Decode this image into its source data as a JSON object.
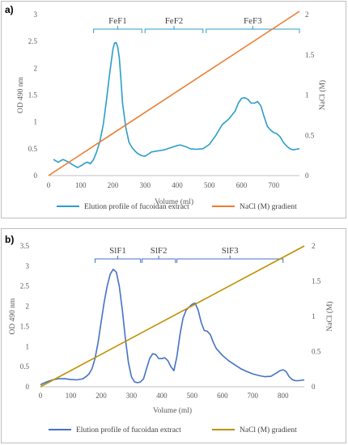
{
  "chart_data": [
    {
      "panel_label": "a)",
      "type": "line",
      "xlabel": "Volume (ml)",
      "ylabel_left": "OD 490 nm",
      "ylabel_right": "NaCl (M)",
      "xlim": [
        0,
        780
      ],
      "x_ticks": [
        "0",
        "100",
        "200",
        "300",
        "400",
        "500",
        "600",
        "700"
      ],
      "ylim_left": [
        0,
        3
      ],
      "y_ticks_left": [
        "0",
        "0.5",
        "1",
        "1.5",
        "2",
        "2.5",
        "3"
      ],
      "ylim_right": [
        0,
        2
      ],
      "y_ticks_right": [
        "0",
        "0.5",
        "1",
        "1.5",
        "2"
      ],
      "fractions": [
        {
          "label": "FeF1",
          "start": 140,
          "end": 290
        },
        {
          "label": "FeF2",
          "start": 300,
          "end": 480
        },
        {
          "label": "FeF3",
          "start": 490,
          "end": 780
        }
      ],
      "series": [
        {
          "name": "Elution profile of fucoidan extract",
          "axis": "left",
          "color": "#2b9ec8",
          "x": [
            15,
            30,
            45,
            60,
            75,
            90,
            100,
            110,
            120,
            130,
            140,
            150,
            160,
            170,
            180,
            190,
            200,
            205,
            210,
            215,
            220,
            225,
            230,
            240,
            250,
            260,
            270,
            280,
            290,
            300,
            310,
            320,
            340,
            360,
            380,
            400,
            410,
            420,
            430,
            440,
            460,
            480,
            500,
            520,
            540,
            560,
            580,
            590,
            600,
            610,
            620,
            630,
            640,
            650,
            660,
            670,
            680,
            690,
            700,
            710,
            720,
            730,
            740,
            750,
            760,
            770,
            780
          ],
          "y": [
            0.3,
            0.25,
            0.3,
            0.26,
            0.2,
            0.15,
            0.18,
            0.22,
            0.25,
            0.22,
            0.3,
            0.45,
            0.65,
            0.95,
            1.4,
            1.9,
            2.35,
            2.47,
            2.48,
            2.4,
            2.2,
            1.8,
            1.35,
            0.9,
            0.62,
            0.52,
            0.45,
            0.4,
            0.37,
            0.36,
            0.4,
            0.44,
            0.46,
            0.48,
            0.52,
            0.56,
            0.57,
            0.55,
            0.53,
            0.5,
            0.49,
            0.5,
            0.58,
            0.75,
            0.95,
            1.05,
            1.2,
            1.35,
            1.44,
            1.45,
            1.42,
            1.35,
            1.35,
            1.38,
            1.3,
            1.1,
            0.92,
            0.85,
            0.8,
            0.78,
            0.72,
            0.62,
            0.55,
            0.5,
            0.48,
            0.49,
            0.5
          ]
        },
        {
          "name": "NaCl (M) gradient",
          "axis": "right",
          "color": "#ed7d31",
          "x": [
            0,
            780
          ],
          "y": [
            0,
            2.04
          ]
        }
      ]
    },
    {
      "panel_label": "b)",
      "type": "line",
      "xlabel": "Volume (ml)",
      "ylabel_left": "OD 490 nm",
      "ylabel_right": "NaCl (M)",
      "xlim": [
        0,
        870
      ],
      "x_ticks": [
        "0",
        "100",
        "200",
        "300",
        "400",
        "500",
        "600",
        "700",
        "800"
      ],
      "ylim_left": [
        0,
        3.5
      ],
      "y_ticks_left": [
        "0",
        "0.5",
        "1",
        "1.5",
        "2",
        "2.5",
        "3",
        "3.5"
      ],
      "ylim_right": [
        0,
        2
      ],
      "y_ticks_right": [
        "0",
        "0.5",
        "1",
        "1.5",
        "2"
      ],
      "fractions": [
        {
          "label": "SlF1",
          "start": 180,
          "end": 330
        },
        {
          "label": "SlF2",
          "start": 335,
          "end": 445
        },
        {
          "label": "SlF3",
          "start": 450,
          "end": 800
        }
      ],
      "series": [
        {
          "name": "Elution profile of fucoidan extract",
          "axis": "left",
          "color": "#4472c4",
          "x": [
            0,
            20,
            40,
            60,
            80,
            100,
            120,
            140,
            150,
            160,
            170,
            180,
            190,
            200,
            210,
            220,
            230,
            240,
            250,
            260,
            270,
            280,
            290,
            300,
            310,
            320,
            330,
            340,
            350,
            360,
            370,
            380,
            390,
            400,
            410,
            420,
            430,
            440,
            450,
            460,
            470,
            480,
            490,
            500,
            510,
            520,
            530,
            540,
            550,
            560,
            570,
            580,
            600,
            620,
            640,
            660,
            680,
            700,
            720,
            740,
            760,
            780,
            790,
            800,
            810,
            820,
            830,
            840,
            850,
            860,
            870
          ],
          "y": [
            0.05,
            0.12,
            0.17,
            0.2,
            0.2,
            0.18,
            0.17,
            0.2,
            0.25,
            0.32,
            0.45,
            0.7,
            1.1,
            1.6,
            2.1,
            2.5,
            2.8,
            2.92,
            2.85,
            2.5,
            1.9,
            1.2,
            0.6,
            0.25,
            0.12,
            0.1,
            0.12,
            0.2,
            0.45,
            0.7,
            0.82,
            0.8,
            0.7,
            0.7,
            0.72,
            0.65,
            0.5,
            0.4,
            0.75,
            1.3,
            1.7,
            1.9,
            1.98,
            2.05,
            2.08,
            1.9,
            1.6,
            1.4,
            1.38,
            1.3,
            1.1,
            0.95,
            0.78,
            0.65,
            0.55,
            0.45,
            0.38,
            0.32,
            0.28,
            0.25,
            0.26,
            0.35,
            0.4,
            0.42,
            0.38,
            0.25,
            0.18,
            0.15,
            0.15,
            0.16,
            0.17
          ]
        },
        {
          "name": "NaCl (M) gradient",
          "axis": "right",
          "color": "#bf9000",
          "x": [
            0,
            870
          ],
          "y": [
            0,
            2.0
          ]
        }
      ]
    }
  ]
}
